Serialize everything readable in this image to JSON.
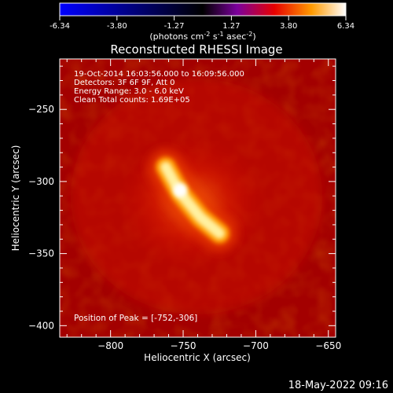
{
  "colorbar": {
    "ticks": [
      "-6.34",
      "-3.80",
      "-1.27",
      "1.27",
      "3.80",
      "6.34"
    ],
    "label_main": "(photons cm",
    "label_exp1": "-2",
    "label_mid1": " s",
    "label_exp2": "-1",
    "label_mid2": " asec",
    "label_exp3": "-2",
    "label_end": ")"
  },
  "chart_data": {
    "type": "heatmap",
    "title": "Reconstructed RHESSI Image",
    "xlabel": "Heliocentric X (arcsec)",
    "ylabel": "Heliocentric Y (arcsec)",
    "xlim": [
      -835,
      -645
    ],
    "ylim": [
      -408,
      -215
    ],
    "x_ticks": [
      -800,
      -750,
      -700,
      -650
    ],
    "y_ticks": [
      -250,
      -300,
      -350,
      -400
    ],
    "x_tick_labels": [
      "−800",
      "−750",
      "−700",
      "−650"
    ],
    "y_tick_labels": [
      "−250",
      "−300",
      "−350",
      "−400"
    ],
    "colorscale": [
      "#0000ff",
      "#000000",
      "#7b009c",
      "#e60000",
      "#ff9a00",
      "#ffffff"
    ],
    "colorbar_range": [
      -6.34,
      6.34
    ],
    "peak": [
      -752,
      -306
    ],
    "source_ridge": [
      [
        -762,
        -290
      ],
      [
        -752,
        -308
      ],
      [
        -738,
        -325
      ],
      [
        -725,
        -336
      ]
    ],
    "info_lines": [
      "19-Oct-2014 16:03:56.000 to 16:09:56.000",
      "Detectors: 3F 6F 9F, Att 0",
      "Energy Range: 3.0 - 6.0 keV",
      "Clean     Total counts: 1.69E+05"
    ],
    "peak_label": "Position of Peak = [-752,-306]"
  },
  "timestamp": "18-May-2022 09:16"
}
